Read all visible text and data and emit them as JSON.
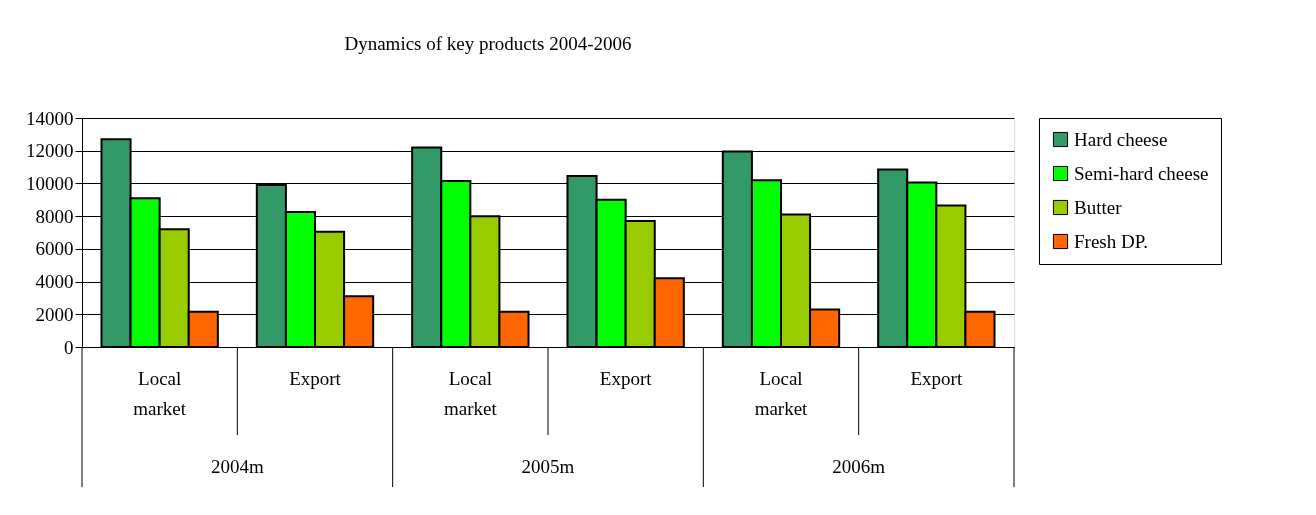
{
  "chart_data": {
    "type": "bar",
    "title": "Dynamics of key products 2004-2006",
    "categories": [
      "Local market",
      "Export",
      "Local market",
      "Export",
      "Local market",
      "Export"
    ],
    "series": [
      {
        "name": "Hard cheese",
        "color": "#339966",
        "values": [
          12700,
          9900,
          12200,
          10450,
          11950,
          10850
        ]
      },
      {
        "name": "Semi-hard cheese",
        "color": "#00ff00",
        "values": [
          9100,
          8250,
          10150,
          9000,
          10200,
          10050
        ]
      },
      {
        "name": "Butter",
        "color": "#99cc00",
        "values": [
          7200,
          7050,
          8000,
          7700,
          8100,
          8650
        ]
      },
      {
        "name": "Fresh DP.",
        "color": "#ff6600",
        "values": [
          2150,
          3100,
          2150,
          4200,
          2300,
          2150
        ]
      }
    ],
    "ylim": [
      0,
      14000
    ],
    "yticks": [
      0,
      2000,
      4000,
      6000,
      8000,
      10000,
      12000,
      14000
    ],
    "grid": "y",
    "legend": "right",
    "annotations": [
      "2004m",
      "2005m",
      "2006m"
    ]
  }
}
